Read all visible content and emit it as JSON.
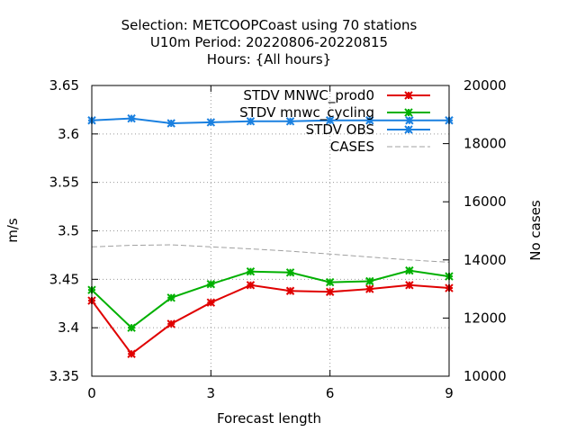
{
  "chart_data": {
    "type": "line",
    "title_lines": [
      "Selection: METCOOPCoast using    70 stations",
      "U10m   Period: 20220806-20220815",
      "Hours: {All hours}"
    ],
    "xlabel": "Forecast length",
    "ylabel": "m/s",
    "y2label": "No cases",
    "xlim": [
      0,
      9
    ],
    "ylim": [
      3.35,
      3.65
    ],
    "y2lim": [
      10000,
      20000
    ],
    "xticks": [
      "0",
      "3",
      "6",
      "9"
    ],
    "yticks": [
      "3.35",
      "3.4",
      "3.45",
      "3.5",
      "3.55",
      "3.6",
      "3.65"
    ],
    "y2ticks": [
      "10000",
      "12000",
      "14000",
      "16000",
      "18000",
      "20000"
    ],
    "grid": true,
    "legend_position": "top-right",
    "x": [
      0,
      1,
      2,
      3,
      4,
      5,
      6,
      7,
      8,
      9
    ],
    "series": [
      {
        "name": "STDV MNWC_prod0",
        "color": "#e00000",
        "axis": "y",
        "marker": "x-star",
        "values": [
          3.428,
          3.373,
          3.404,
          3.426,
          3.444,
          3.438,
          3.437,
          3.44,
          3.444,
          3.441
        ]
      },
      {
        "name": "STDV mnwc_cycling",
        "color": "#00b000",
        "axis": "y",
        "marker": "x-star",
        "values": [
          3.439,
          3.4,
          3.431,
          3.445,
          3.458,
          3.457,
          3.447,
          3.448,
          3.459,
          3.453
        ]
      },
      {
        "name": "STDV OBS",
        "color": "#1a80e0",
        "axis": "y",
        "marker": "x-star",
        "values": [
          3.614,
          3.616,
          3.611,
          3.612,
          3.613,
          3.613,
          3.614,
          3.614,
          3.614,
          3.614
        ]
      },
      {
        "name": "CASES",
        "color": "#a0a0a0",
        "axis": "y2",
        "marker": "none",
        "dashed": true,
        "values": [
          14450,
          14500,
          14520,
          14450,
          14380,
          14300,
          14200,
          14100,
          14000,
          13920
        ]
      }
    ]
  }
}
